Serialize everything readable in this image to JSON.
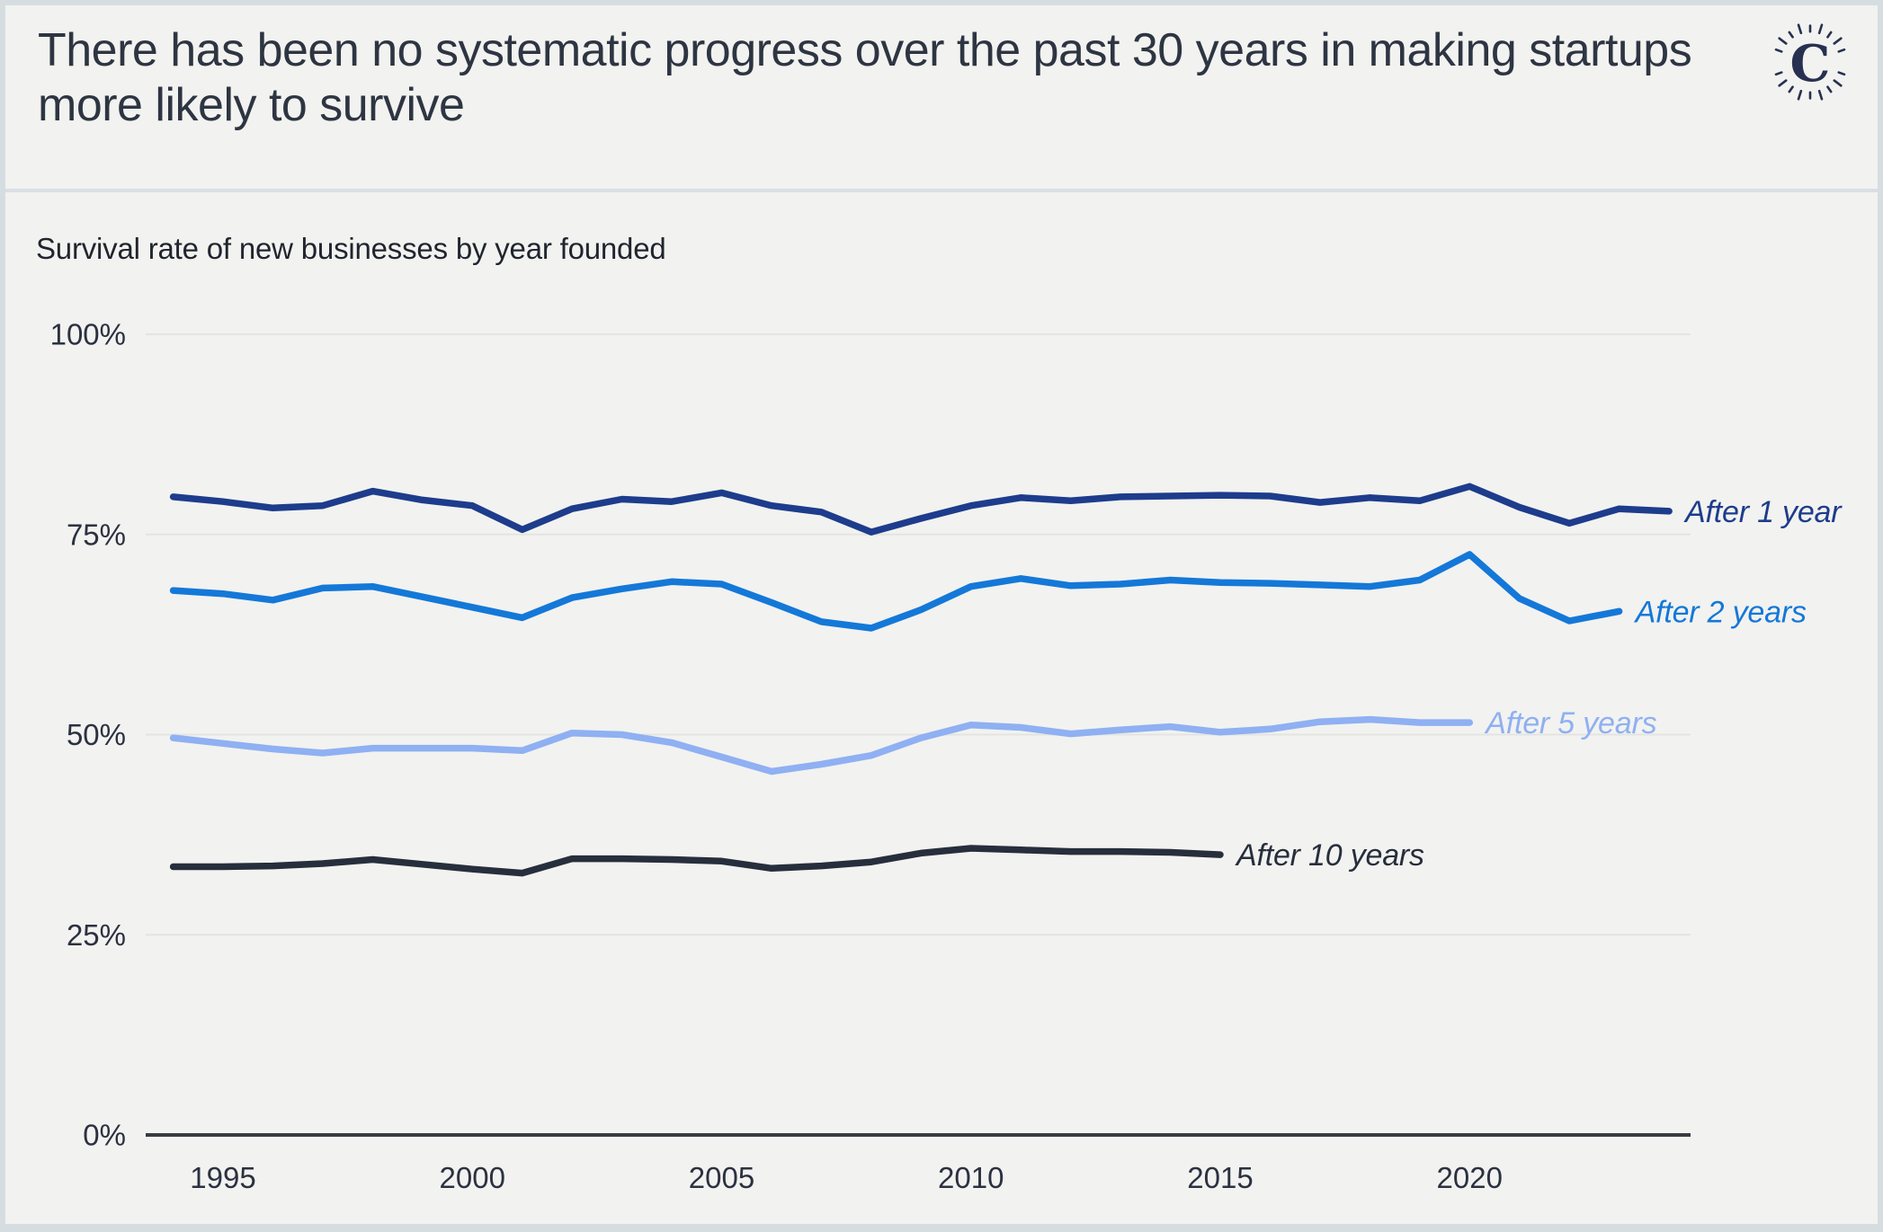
{
  "header": {
    "title": "There has been no systematic progress over the past 30 years in making startups more likely to survive",
    "logo_letter": "C"
  },
  "colors": {
    "background": "#f2f2f0",
    "frame_border": "#d6dde1",
    "title_text": "#2e3542",
    "subtitle_text": "#20252e",
    "tick_text": "#2b3140",
    "gridline": "#e4e4e1",
    "axis_line": "#383c42",
    "logo": "#273050"
  },
  "chart_data": {
    "type": "line",
    "title": "Survival rate of new businesses by year founded",
    "xlabel": "",
    "ylabel": "",
    "grid": "horizontal-only",
    "legend_position": "line-end-labels",
    "x_axis": {
      "range": [
        1994,
        2024
      ],
      "ticks": [
        1995,
        2000,
        2005,
        2010,
        2015,
        2020
      ]
    },
    "y_axis": {
      "range": [
        0,
        100
      ],
      "unit": "%",
      "ticks": [
        {
          "value": 100,
          "label": "100%"
        },
        {
          "value": 75,
          "label": "75%"
        },
        {
          "value": 50,
          "label": "50%"
        },
        {
          "value": 25,
          "label": "25%"
        },
        {
          "value": 0,
          "label": "0%"
        }
      ]
    },
    "series": [
      {
        "name": "After 1 year",
        "slug": "after-1-year",
        "color": "#1d3c8c",
        "start_year": 1994,
        "values": [
          79.7,
          79.1,
          78.3,
          78.6,
          80.4,
          79.3,
          78.6,
          75.6,
          78.2,
          79.4,
          79.1,
          80.2,
          78.6,
          77.8,
          75.3,
          77.0,
          78.6,
          79.6,
          79.2,
          79.7,
          79.8,
          79.9,
          79.8,
          79.0,
          79.6,
          79.2,
          81.0,
          78.4,
          76.4,
          78.2,
          77.9
        ]
      },
      {
        "name": "After 2 years",
        "slug": "after-2-years",
        "color": "#1478d8",
        "start_year": 1994,
        "values": [
          68.0,
          67.6,
          66.8,
          68.3,
          68.5,
          67.2,
          65.9,
          64.6,
          67.1,
          68.2,
          69.1,
          68.8,
          66.5,
          64.1,
          63.3,
          65.6,
          68.5,
          69.5,
          68.6,
          68.8,
          69.3,
          69.0,
          68.9,
          68.7,
          68.5,
          69.3,
          72.5,
          67.0,
          64.2,
          65.4
        ]
      },
      {
        "name": "After 5 years",
        "slug": "after-5-years",
        "color": "#8fb0f2",
        "start_year": 1994,
        "values": [
          49.6,
          48.9,
          48.2,
          47.7,
          48.3,
          48.3,
          48.3,
          48.0,
          50.2,
          50.0,
          49.0,
          47.2,
          45.4,
          46.3,
          47.4,
          49.6,
          51.2,
          50.9,
          50.1,
          50.6,
          51.0,
          50.3,
          50.7,
          51.6,
          51.9,
          51.5,
          51.5
        ]
      },
      {
        "name": "After 10 years",
        "slug": "after-10-years",
        "color": "#272e3c",
        "start_year": 1994,
        "values": [
          33.5,
          33.5,
          33.6,
          33.9,
          34.4,
          33.8,
          33.2,
          32.7,
          34.5,
          34.5,
          34.4,
          34.2,
          33.3,
          33.6,
          34.1,
          35.2,
          35.8,
          35.6,
          35.4,
          35.4,
          35.3,
          35.0
        ]
      }
    ]
  }
}
